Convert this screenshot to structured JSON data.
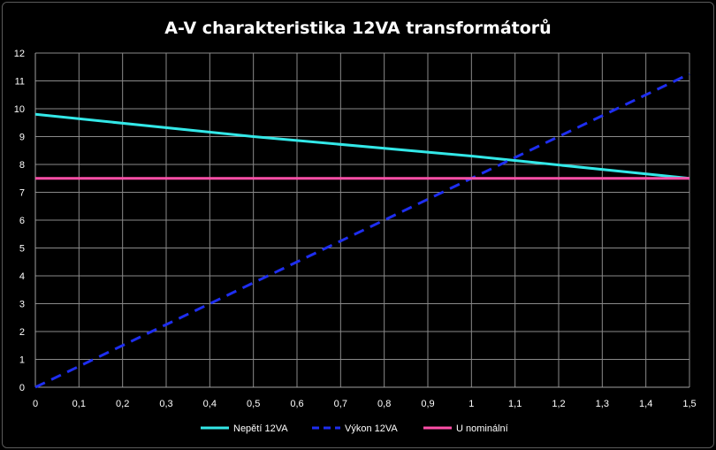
{
  "chart_data": {
    "type": "line",
    "title": "A-V charakteristika 12VA transformátorů",
    "xlabel": "",
    "ylabel": "",
    "xlim": [
      0,
      1.5
    ],
    "ylim": [
      0,
      12
    ],
    "x_ticks": [
      "0",
      "0,1",
      "0,2",
      "0,3",
      "0,4",
      "0,5",
      "0,6",
      "0,7",
      "0,8",
      "0,9",
      "1",
      "1,1",
      "1,2",
      "1,3",
      "1,4",
      "1,5"
    ],
    "y_ticks": [
      "0",
      "1",
      "2",
      "3",
      "4",
      "5",
      "6",
      "7",
      "8",
      "9",
      "10",
      "11",
      "12"
    ],
    "grid": true,
    "legend_position": "bottom",
    "series": [
      {
        "name": "Nepětí 12VA",
        "color": "#33e8e8",
        "style": "solid",
        "x": [
          0,
          0.5,
          1.0,
          1.5
        ],
        "y": [
          9.8,
          9.0,
          8.3,
          7.5
        ]
      },
      {
        "name": "Výkon 12VA",
        "color": "#1e2ef0",
        "style": "dashed",
        "x": [
          0,
          1.5
        ],
        "y": [
          0,
          11.25
        ]
      },
      {
        "name": "U nominální",
        "color": "#ff4fa8",
        "style": "solid",
        "x": [
          0,
          1.5
        ],
        "y": [
          7.5,
          7.5
        ]
      }
    ]
  }
}
